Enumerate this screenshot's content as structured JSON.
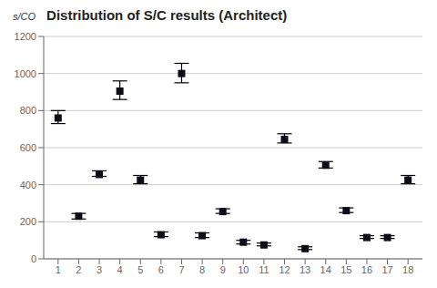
{
  "chart_data": {
    "type": "scatter",
    "title": "Distribution of S/C results (Architect)",
    "ylabel": "s/CO",
    "x": [
      1,
      2,
      3,
      4,
      5,
      6,
      7,
      8,
      9,
      10,
      11,
      12,
      13,
      14,
      15,
      16,
      17,
      18
    ],
    "values": [
      760,
      230,
      455,
      905,
      425,
      130,
      1000,
      125,
      255,
      90,
      75,
      645,
      55,
      505,
      260,
      115,
      115,
      425
    ],
    "upper_err": [
      40,
      15,
      20,
      55,
      25,
      15,
      55,
      15,
      15,
      10,
      10,
      30,
      10,
      20,
      15,
      10,
      10,
      25
    ],
    "lower_err": [
      30,
      15,
      10,
      45,
      20,
      10,
      50,
      10,
      10,
      10,
      5,
      20,
      5,
      15,
      10,
      5,
      5,
      20
    ],
    "color": "#0d0d1a",
    "marker": "square",
    "xlim": [
      0.3,
      18.7
    ],
    "xticks": [
      1,
      2,
      3,
      4,
      5,
      6,
      7,
      8,
      9,
      10,
      11,
      12,
      13,
      14,
      15,
      16,
      17,
      18
    ],
    "ylim": [
      0,
      1200
    ],
    "yticks": [
      0,
      200,
      400,
      600,
      800,
      1000,
      1200
    ],
    "grid": "y"
  }
}
